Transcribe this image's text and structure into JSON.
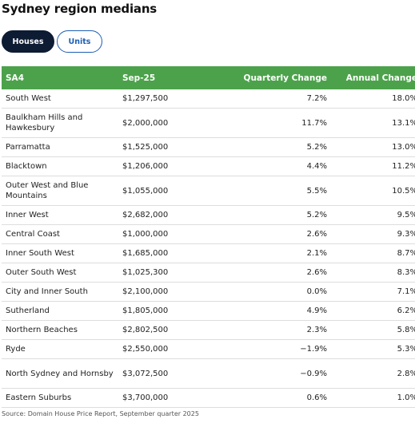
{
  "title": "Sydney region medians",
  "toggle": {
    "houses_label": "Houses",
    "units_label": "Units",
    "selected": "Houses"
  },
  "table": {
    "headers": [
      "SA4",
      "Sep-25",
      "Quarterly Change",
      "Annual Change"
    ],
    "rows": [
      [
        "South West",
        "$1,297,500",
        "7.2%",
        "18.0%"
      ],
      [
        "Baulkham Hills and Hawkesbury",
        "$2,000,000",
        "11.7%",
        "13.1%"
      ],
      [
        "Parramatta",
        "$1,525,000",
        "5.2%",
        "13.0%"
      ],
      [
        "Blacktown",
        "$1,206,000",
        "4.4%",
        "11.2%"
      ],
      [
        "Outer West and Blue Mountains",
        "$1,055,000",
        "5.5%",
        "10.5%"
      ],
      [
        "Inner West",
        "$2,682,000",
        "5.2%",
        "9.5%"
      ],
      [
        "Central Coast",
        "$1,000,000",
        "2.6%",
        "9.3%"
      ],
      [
        "Inner South West",
        "$1,685,000",
        "2.1%",
        "8.7%"
      ],
      [
        "Outer South West",
        "$1,025,300",
        "2.6%",
        "8.3%"
      ],
      [
        "City and Inner South",
        "$2,100,000",
        "0.0%",
        "7.1%"
      ],
      [
        "Sutherland",
        "$1,805,000",
        "4.9%",
        "6.2%"
      ],
      [
        "Northern Beaches",
        "$2,802,500",
        "2.3%",
        "5.8%"
      ],
      [
        "Ryde",
        "$2,550,000",
        "−1.9%",
        "5.3%"
      ],
      [
        "North Sydney and Hornsby",
        "$3,072,500",
        "−0.9%",
        "2.8%"
      ],
      [
        "Eastern Suburbs",
        "$3,700,000",
        "0.6%",
        "1.0%"
      ]
    ]
  },
  "source": "Source: Domain House Price Report, September quarter 2025",
  "colors": {
    "header_bg": "#4ca24b",
    "active_toggle": "#0d1b33",
    "inactive_toggle_text": "#1d5fb4"
  }
}
